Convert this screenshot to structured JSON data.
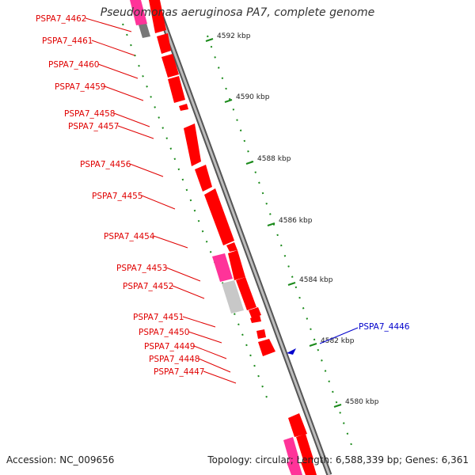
{
  "title": "Pseudomonas aeruginosa PA7, complete genome",
  "footer": {
    "accession": "Accession: NC_009656",
    "topology": "Topology: circular; Length: 6,588,339 bp; Genes: 6,361"
  },
  "colors": {
    "gene_label": "#e00000",
    "highlight_label": "#0000cc",
    "gene_fill": "#ff0000",
    "rna_fill": "#ff3399",
    "pseudo_fill": "#c8c8c8",
    "tick": "#1a8a1a",
    "backbone": "#888888"
  },
  "gene_labels": [
    "PSPA7_4462",
    "PSPA7_4461",
    "PSPA7_4460",
    "PSPA7_4459",
    "PSPA7_4458",
    "PSPA7_4457",
    "PSPA7_4456",
    "PSPA7_4455",
    "PSPA7_4454",
    "PSPA7_4453",
    "PSPA7_4452",
    "PSPA7_4451",
    "PSPA7_4450",
    "PSPA7_4449",
    "PSPA7_4448",
    "PSPA7_4447"
  ],
  "highlight_label": "PSPA7_4446",
  "kbp_labels": [
    "4592 kbp",
    "4590 kbp",
    "4588 kbp",
    "4586 kbp",
    "4584 kbp",
    "4582 kbp",
    "4580 kbp"
  ]
}
